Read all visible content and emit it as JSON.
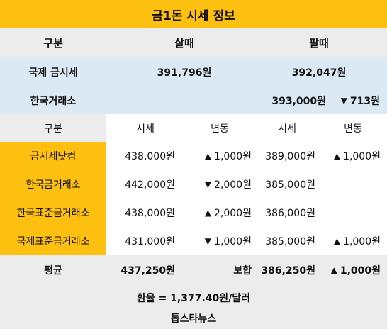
{
  "title": "금1돈 시세 정보",
  "header": {
    "category": "구분",
    "buy": "살때",
    "sell": "팔때"
  },
  "international": {
    "label": "국제 금시세",
    "buy": "391,796원",
    "sell": "392,047원"
  },
  "krx": {
    "label": "한국거래소",
    "sell": "393,000원",
    "change_dir": "▼",
    "change": "713원"
  },
  "subheader": {
    "category": "구분",
    "price": "시세",
    "change": "변동",
    "price2": "시세",
    "change2": "변동"
  },
  "rows": [
    {
      "name": "금시세닷컴",
      "buy": "438,000원",
      "buy_dir": "▲",
      "buy_change": "1,000원",
      "sell": "389,000원",
      "sell_dir": "▲",
      "sell_change": "1,000원"
    },
    {
      "name": "한국금거래소",
      "buy": "442,000원",
      "buy_dir": "▼",
      "buy_change": "2,000원",
      "sell": "385,000원",
      "sell_dir": "",
      "sell_change": ""
    },
    {
      "name": "한국표준금거래소",
      "buy": "438,000원",
      "buy_dir": "▲",
      "buy_change": "2,000원",
      "sell": "386,000원",
      "sell_dir": "",
      "sell_change": ""
    },
    {
      "name": "국제표준금거래소",
      "buy": "431,000원",
      "buy_dir": "▼",
      "buy_change": "1,000원",
      "sell": "385,000원",
      "sell_dir": "▲",
      "sell_change": "1,000원"
    }
  ],
  "average": {
    "label": "평균",
    "buy": "437,250원",
    "hold_label": "보합",
    "sell": "386,250원",
    "dir": "▲",
    "change": "1,000원"
  },
  "footer": {
    "exchange_rate": "환율 = 1,377.40원/달러",
    "source": "톱스타뉴스"
  },
  "colors": {
    "accent_yellow": "#fdc010",
    "light_blue": "#dbe9f5",
    "light_gray": "#ececec"
  }
}
